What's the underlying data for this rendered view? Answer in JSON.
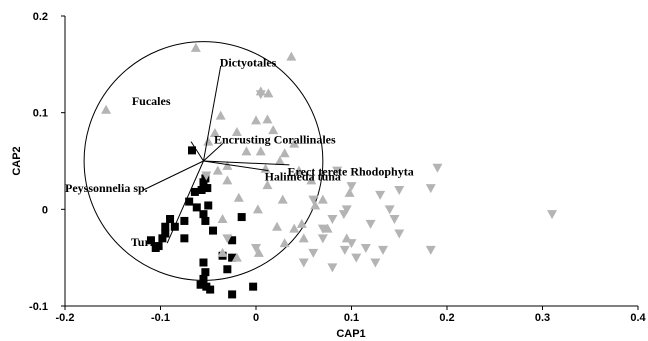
{
  "chart_data": {
    "type": "scatter",
    "xlabel": "CAP1",
    "ylabel": "CAP2",
    "xlim": [
      -0.2,
      0.4
    ],
    "ylim": [
      -0.1,
      0.2
    ],
    "x_ticks": [
      {
        "value": -0.2,
        "label": "-0.2"
      },
      {
        "value": -0.1,
        "label": "-0.1"
      },
      {
        "value": 0,
        "label": "0"
      },
      {
        "value": 0.1,
        "label": "0.1"
      },
      {
        "value": 0.2,
        "label": "0.2"
      },
      {
        "value": 0.3,
        "label": "0.3"
      },
      {
        "value": 0.4,
        "label": "0.4"
      }
    ],
    "y_ticks": [
      {
        "value": -0.1,
        "label": "-0.1"
      },
      {
        "value": 0,
        "label": "0"
      },
      {
        "value": 0.1,
        "label": "0.1"
      },
      {
        "value": 0.2,
        "label": "0.2"
      }
    ],
    "grid": false,
    "colors": {
      "squares": "#000000",
      "triangles_up": "#b4b4b4",
      "triangles_down": "#b4b4b4"
    },
    "correlation_circle": {
      "center": [
        -0.055,
        0.05
      ],
      "radius_x": 0.125
    },
    "vector_origin": [
      -0.055,
      0.05
    ],
    "vectors": [
      {
        "label": "Dictyotales",
        "end": [
          -0.037,
          0.148
        ],
        "label_at": [
          -0.038,
          0.148
        ]
      },
      {
        "label": "Fucales",
        "end": [
          -0.068,
          0.07
        ],
        "label_at": [
          -0.13,
          0.108
        ]
      },
      {
        "label": "Encrusting Corallinales",
        "end": [
          -0.035,
          0.068
        ],
        "label_at": [
          -0.044,
          0.068
        ]
      },
      {
        "label": "Erect terete Rhodophyta",
        "end": [
          0.035,
          0.046
        ],
        "label_at": [
          0.033,
          0.035
        ]
      },
      {
        "label": "Halimeda tuna",
        "end": [
          0.013,
          0.04
        ],
        "label_at": [
          0.009,
          0.03
        ]
      },
      {
        "label": "Peyssonnelia sp.",
        "end": [
          -0.118,
          0.02
        ],
        "label_at": [
          -0.2,
          0.018
        ]
      },
      {
        "label": "Turf",
        "end": [
          -0.093,
          -0.035
        ],
        "label_at": [
          -0.131,
          -0.038
        ]
      }
    ],
    "series": [
      {
        "marker": "square",
        "points": [
          [
            -0.067,
            0.061
          ],
          [
            -0.055,
            0.028
          ],
          [
            -0.051,
            0.022
          ],
          [
            -0.057,
            0.02
          ],
          [
            -0.064,
            0.018
          ],
          [
            -0.053,
            0.032
          ],
          [
            -0.07,
            0.008
          ],
          [
            -0.05,
            0.004
          ],
          [
            -0.062,
            0.002
          ],
          [
            -0.055,
            -0.005
          ],
          [
            -0.09,
            -0.01
          ],
          [
            -0.075,
            -0.012
          ],
          [
            -0.085,
            -0.018
          ],
          [
            -0.053,
            -0.012
          ],
          [
            -0.095,
            -0.018
          ],
          [
            -0.045,
            -0.022
          ],
          [
            -0.095,
            -0.025
          ],
          [
            -0.015,
            -0.008
          ],
          [
            -0.075,
            -0.03
          ],
          [
            -0.098,
            -0.03
          ],
          [
            -0.105,
            -0.04
          ],
          [
            -0.11,
            -0.032
          ],
          [
            -0.102,
            -0.038
          ],
          [
            -0.025,
            -0.032
          ],
          [
            -0.035,
            -0.048
          ],
          [
            -0.025,
            -0.05
          ],
          [
            -0.03,
            -0.062
          ],
          [
            -0.055,
            -0.055
          ],
          [
            -0.053,
            -0.065
          ],
          [
            -0.055,
            -0.072
          ],
          [
            -0.058,
            -0.078
          ],
          [
            -0.052,
            -0.08
          ],
          [
            -0.048,
            -0.083
          ],
          [
            -0.003,
            -0.08
          ],
          [
            -0.025,
            -0.088
          ]
        ]
      },
      {
        "marker": "triangle-up",
        "points": [
          [
            -0.063,
            0.167
          ],
          [
            0.037,
            0.158
          ],
          [
            -0.157,
            0.103
          ],
          [
            0.005,
            0.122
          ],
          [
            0.013,
            0.12
          ],
          [
            -0.037,
            0.097
          ],
          [
            0.0,
            0.092
          ],
          [
            0.012,
            0.093
          ],
          [
            -0.05,
            0.07
          ],
          [
            -0.043,
            0.079
          ],
          [
            -0.02,
            0.08
          ],
          [
            0.018,
            0.082
          ],
          [
            0.03,
            0.058
          ],
          [
            0.005,
            0.06
          ],
          [
            0.04,
            0.068
          ],
          [
            -0.01,
            0.06
          ],
          [
            0.025,
            0.05
          ],
          [
            0.01,
            0.042
          ],
          [
            -0.03,
            0.045
          ],
          [
            0.045,
            0.04
          ],
          [
            -0.04,
            0.04
          ],
          [
            -0.03,
            0.03
          ],
          [
            -0.018,
            0.012
          ],
          [
            0.012,
            0.025
          ],
          [
            0.058,
            0.03
          ],
          [
            0.062,
            0.004
          ],
          [
            0.028,
            0.01
          ],
          [
            0.002,
            0.0
          ],
          [
            -0.035,
            -0.01
          ],
          [
            0.048,
            -0.015
          ],
          [
            0.04,
            -0.02
          ],
          [
            0.022,
            -0.018
          ],
          [
            0.05,
            -0.03
          ],
          [
            0.03,
            -0.035
          ],
          [
            0.003,
            -0.045
          ],
          [
            -0.02,
            -0.05
          ],
          [
            -0.035,
            -0.045
          ],
          [
            0.098,
            0.017
          ],
          [
            0.07,
            0.01
          ],
          [
            0.075,
            -0.02
          ],
          [
            0.095,
            -0.03
          ]
        ]
      },
      {
        "marker": "triangle-down",
        "points": [
          [
            0.005,
            0.119
          ],
          [
            -0.052,
            0.035
          ],
          [
            0.085,
            0.04
          ],
          [
            0.19,
            0.043
          ],
          [
            0.1,
            0.024
          ],
          [
            0.183,
            0.022
          ],
          [
            0.15,
            0.02
          ],
          [
            0.13,
            0.015
          ],
          [
            0.06,
            0.01
          ],
          [
            0.095,
            0.0
          ],
          [
            0.14,
            0.0
          ],
          [
            0.092,
            -0.005
          ],
          [
            0.145,
            -0.01
          ],
          [
            0.31,
            -0.005
          ],
          [
            0.08,
            -0.01
          ],
          [
            0.12,
            -0.015
          ],
          [
            0.07,
            -0.02
          ],
          [
            0.15,
            -0.025
          ],
          [
            0.1,
            -0.035
          ],
          [
            0.07,
            -0.03
          ],
          [
            0.115,
            -0.04
          ],
          [
            0.133,
            -0.042
          ],
          [
            0.183,
            -0.042
          ],
          [
            0.093,
            -0.042
          ],
          [
            0.06,
            -0.045
          ],
          [
            0.105,
            -0.05
          ],
          [
            0.05,
            -0.055
          ],
          [
            0.125,
            -0.055
          ],
          [
            0.08,
            -0.06
          ],
          [
            0.0,
            -0.04
          ],
          [
            -0.03,
            -0.03
          ]
        ]
      }
    ]
  }
}
